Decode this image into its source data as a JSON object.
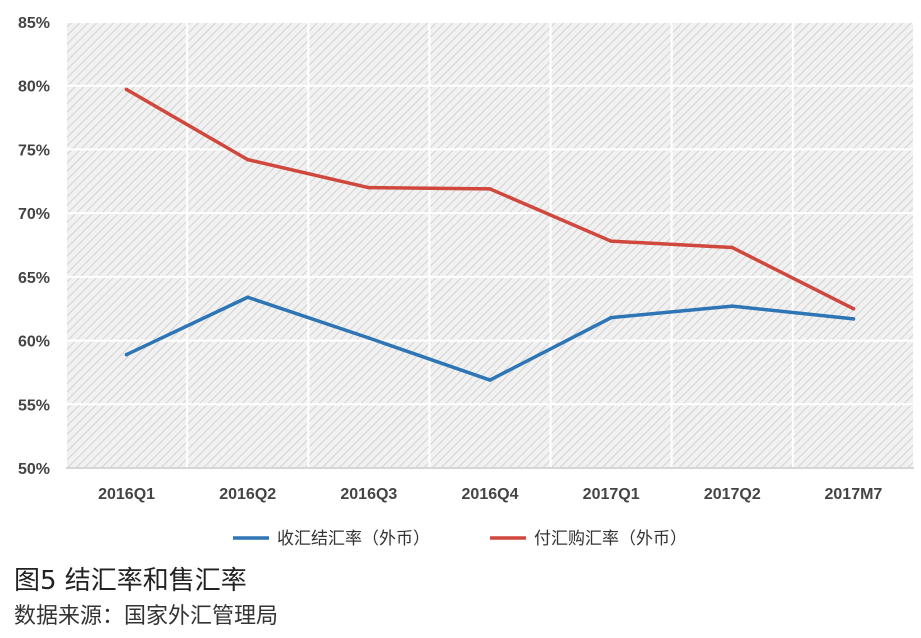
{
  "chart_data": {
    "type": "line",
    "categories": [
      "2016Q1",
      "2016Q2",
      "2016Q3",
      "2016Q4",
      "2017Q1",
      "2017Q2",
      "2017M7"
    ],
    "series": [
      {
        "name": "收汇结汇率（外币）",
        "color": "#2e75b6",
        "values": [
          58.9,
          63.4,
          60.2,
          56.9,
          61.8,
          62.7,
          61.7
        ]
      },
      {
        "name": "付汇购汇率（外币）",
        "color": "#d0473d",
        "values": [
          79.7,
          74.2,
          72.0,
          71.9,
          67.8,
          67.3,
          62.5
        ]
      }
    ],
    "ylim": [
      50,
      85
    ],
    "yticks": [
      50,
      55,
      60,
      65,
      70,
      75,
      80,
      85
    ],
    "ytick_suffix": "%",
    "grid": true,
    "legend_position": "bottom"
  },
  "caption": {
    "title": "图5  结汇率和售汇率",
    "source": "数据来源：国家外汇管理局"
  }
}
